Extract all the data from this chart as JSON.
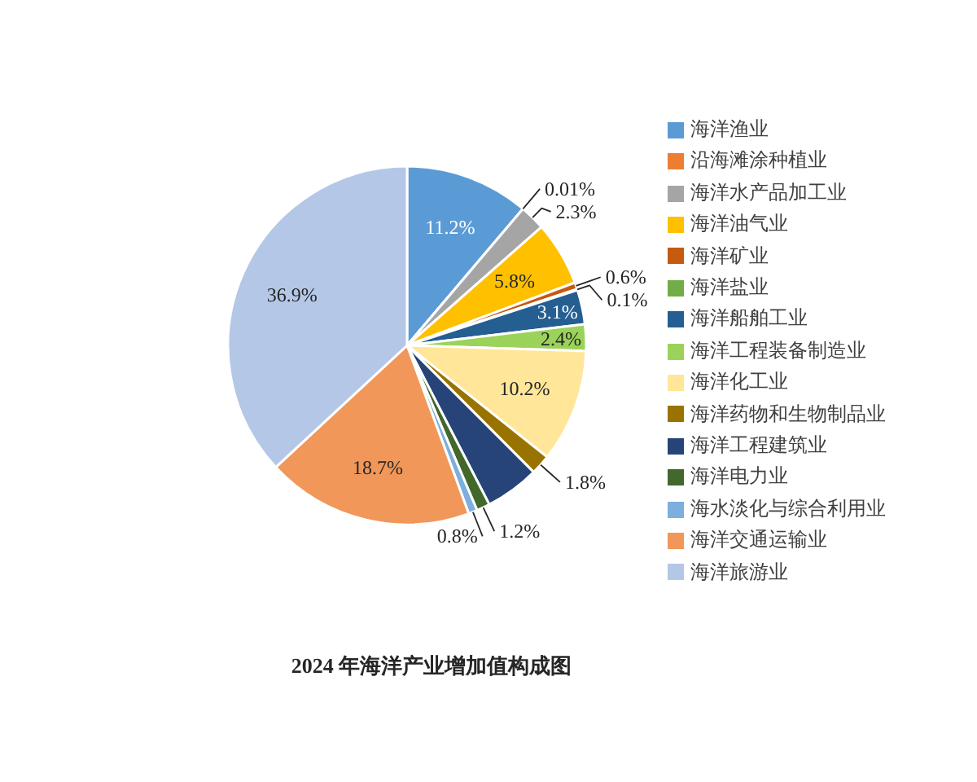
{
  "chart_data": {
    "type": "pie",
    "title": "2024 年海洋产业增加值构成图",
    "categories": [
      "海洋渔业",
      "沿海滩涂种植业",
      "海洋水产品加工业",
      "海洋油气业",
      "海洋矿业",
      "海洋盐业",
      "海洋船舶工业",
      "海洋工程装备制造业",
      "海洋化工业",
      "海洋药物和生物制品业",
      "海洋工程建筑业",
      "海洋电力业",
      "海水淡化与综合利用业",
      "海洋交通运输业",
      "海洋旅游业"
    ],
    "values": [
      11.2,
      0.01,
      2.3,
      5.8,
      0.6,
      0.1,
      3.1,
      2.4,
      10.2,
      1.8,
      4.9,
      1.2,
      0.8,
      18.7,
      36.9
    ],
    "colors": [
      "#5b9bd5",
      "#ed7d31",
      "#a5a5a5",
      "#ffc000",
      "#c55a11",
      "#70ad47",
      "#255e91",
      "#9bd35a",
      "#ffe699",
      "#997300",
      "#264478",
      "#43682b",
      "#7cafdd",
      "#f1975a",
      "#b4c7e7"
    ],
    "value_labels": [
      "11.2%",
      "0.01%",
      "2.3%",
      "5.8%",
      "0.6%",
      "0.1%",
      "3.1%",
      "2.4%",
      "10.2%",
      "1.8%",
      null,
      "1.2%",
      "0.8%",
      "18.7%",
      "36.9%"
    ],
    "legend": "right"
  }
}
